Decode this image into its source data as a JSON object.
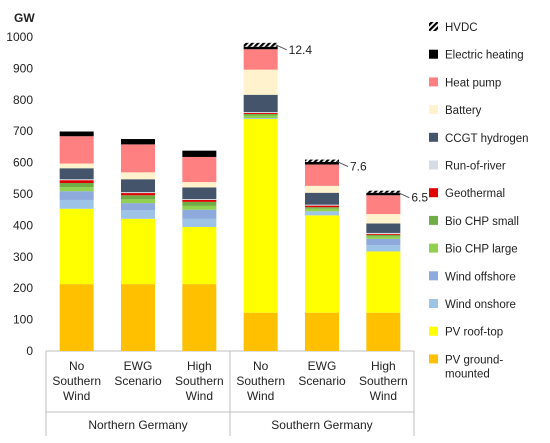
{
  "chart_data": {
    "type": "bar",
    "stacked": true,
    "ylabel": "GW",
    "ylim": [
      0,
      1000
    ],
    "yticks": [
      "0",
      "100",
      "200",
      "300",
      "400",
      "500",
      "600",
      "700",
      "800",
      "900",
      "1000"
    ],
    "categories": [
      [
        "No",
        "Southern",
        "Wind"
      ],
      [
        "EWG",
        "Scenario"
      ],
      [
        "High",
        "Southern",
        "Wind"
      ],
      [
        "No",
        "Southern",
        "Wind"
      ],
      [
        "EWG",
        "Scenario"
      ],
      [
        "High",
        "Southern",
        "Wind"
      ]
    ],
    "groups": [
      {
        "label": "Northern Germany",
        "indices": [
          0,
          1,
          2
        ]
      },
      {
        "label": "Southern Germany",
        "indices": [
          3,
          4,
          5
        ]
      }
    ],
    "series": [
      {
        "name": "PV ground-mounted",
        "color": "#FFC000",
        "values": [
          213,
          213,
          213,
          122,
          122,
          122
        ]
      },
      {
        "name": "PV roof-top",
        "color": "#FFFF00",
        "values": [
          240,
          208,
          182,
          617,
          310,
          195
        ]
      },
      {
        "name": "Wind onshore",
        "color": "#9DC3E6",
        "values": [
          28,
          28,
          27,
          3,
          13,
          20
        ]
      },
      {
        "name": "Wind offshore",
        "color": "#8EA9DB",
        "values": [
          28,
          22,
          28,
          0,
          0,
          20
        ]
      },
      {
        "name": "Bio CHP large",
        "color": "#92D050",
        "values": [
          13,
          12,
          12,
          8,
          8,
          8
        ]
      },
      {
        "name": "Bio CHP small",
        "color": "#70AD47",
        "values": [
          13,
          13,
          13,
          5,
          5,
          5
        ]
      },
      {
        "name": "Geothermal",
        "color": "#E00000",
        "values": [
          9,
          7,
          6,
          3,
          5,
          3
        ]
      },
      {
        "name": "Run-of-river",
        "color": "#D6DCE4",
        "values": [
          3,
          3,
          3,
          3,
          3,
          3
        ]
      },
      {
        "name": "CCGT hydrogen",
        "color": "#44546A",
        "values": [
          35,
          41,
          37,
          55,
          38,
          30
        ]
      },
      {
        "name": "Battery",
        "color": "#FFF2CC",
        "values": [
          15,
          22,
          17,
          80,
          22,
          30
        ]
      },
      {
        "name": "Heat pump",
        "color": "#FF8080",
        "values": [
          87,
          89,
          80,
          65,
          68,
          60
        ]
      },
      {
        "name": "Electric heating",
        "color": "#000000",
        "values": [
          15,
          17,
          20,
          8,
          8,
          8
        ]
      },
      {
        "name": "HVDC",
        "color": "#000000",
        "pattern": "hatch",
        "values": [
          0,
          0,
          0,
          12.4,
          7.6,
          6.5
        ]
      }
    ],
    "annotations": [
      {
        "index": 3,
        "text": "12.4"
      },
      {
        "index": 4,
        "text": "7.6"
      },
      {
        "index": 5,
        "text": "6.5"
      }
    ],
    "legend": "right"
  }
}
